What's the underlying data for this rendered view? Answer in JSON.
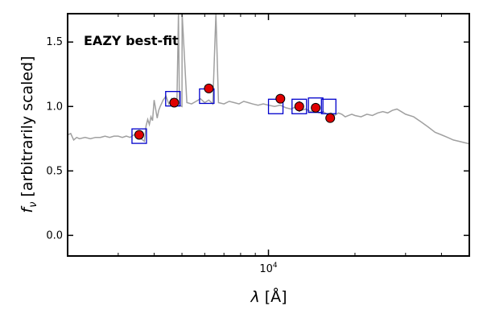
{
  "chart_data": {
    "type": "scatter",
    "xscale": "log",
    "xlim": [
      2000,
      50000
    ],
    "ylim": [
      -0.16,
      1.72
    ],
    "grid": false,
    "xticks": [
      {
        "value": 10000,
        "base": "10",
        "exp": "4"
      }
    ],
    "yticks": [
      {
        "value": 0.0,
        "label": "0.0"
      },
      {
        "value": 0.5,
        "label": "0.5"
      },
      {
        "value": 1.0,
        "label": "1.0"
      },
      {
        "value": 1.5,
        "label": "1.5"
      }
    ],
    "xlabel": {
      "symbol": "λ",
      "unit": "[Å]"
    },
    "ylabel": {
      "symbol": "f",
      "sub": "ν",
      "text": "[arbitrarily scaled]"
    },
    "annotation": {
      "text": "EAZY best-fit",
      "color": "#ff0000"
    },
    "colors": {
      "template": "#a0a0a0",
      "observed": "#e00000",
      "model": "#0000cc"
    },
    "template_spectrum": {
      "x": [
        2000,
        2050,
        2100,
        2150,
        2200,
        2300,
        2400,
        2500,
        2600,
        2700,
        2800,
        2900,
        3000,
        3100,
        3200,
        3300,
        3400,
        3500,
        3600,
        3650,
        3700,
        3750,
        3800,
        3850,
        3900,
        3950,
        4000,
        4050,
        4100,
        4150,
        4200,
        4300,
        4400,
        4500,
        4600,
        4700,
        4800,
        4861,
        4900,
        5000,
        5007,
        5200,
        5400,
        5600,
        5800,
        6000,
        6200,
        6400,
        6563,
        6700,
        7000,
        7300,
        7600,
        7900,
        8200,
        8500,
        8800,
        9200,
        9600,
        10000,
        10500,
        11000,
        11500,
        12000,
        12500,
        13000,
        13500,
        14000,
        14500,
        15000,
        15500,
        16000,
        16500,
        17000,
        17500,
        18000,
        18500,
        19000,
        19500,
        20000,
        21000,
        22000,
        23000,
        24000,
        25000,
        26000,
        27000,
        28000,
        29000,
        30000,
        32000,
        34000,
        36000,
        38000,
        40000,
        42000,
        44000,
        46000,
        48000,
        50000
      ],
      "y": [
        0.78,
        0.79,
        0.74,
        0.76,
        0.75,
        0.76,
        0.75,
        0.76,
        0.76,
        0.77,
        0.76,
        0.77,
        0.77,
        0.76,
        0.77,
        0.76,
        0.78,
        0.77,
        0.75,
        0.74,
        0.73,
        0.85,
        0.9,
        0.86,
        0.92,
        0.89,
        1.05,
        0.98,
        0.91,
        0.97,
        1.0,
        1.05,
        1.08,
        1.02,
        1.06,
        1.0,
        1.01,
        1.72,
        1.01,
        1.0,
        1.72,
        1.03,
        1.02,
        1.04,
        1.06,
        1.03,
        1.05,
        1.02,
        1.72,
        1.03,
        1.02,
        1.04,
        1.03,
        1.02,
        1.04,
        1.03,
        1.02,
        1.01,
        1.02,
        1.01,
        1.0,
        1.01,
        0.99,
        0.98,
        1.0,
        0.97,
        0.98,
        0.96,
        0.97,
        0.95,
        0.96,
        0.94,
        0.95,
        0.93,
        0.95,
        0.94,
        0.92,
        0.93,
        0.94,
        0.93,
        0.92,
        0.94,
        0.93,
        0.95,
        0.96,
        0.95,
        0.97,
        0.98,
        0.96,
        0.94,
        0.92,
        0.88,
        0.84,
        0.8,
        0.78,
        0.76,
        0.74,
        0.73,
        0.72,
        0.71
      ]
    },
    "observed": [
      {
        "x": 3550,
        "y": 0.78,
        "err": 0.02
      },
      {
        "x": 4700,
        "y": 1.03,
        "err": 0.02
      },
      {
        "x": 6200,
        "y": 1.14,
        "err": 0.02
      },
      {
        "x": 11000,
        "y": 1.06,
        "err": 0.03
      },
      {
        "x": 12800,
        "y": 1.0,
        "err": 0.04
      },
      {
        "x": 14600,
        "y": 0.99,
        "err": 0.03
      },
      {
        "x": 16400,
        "y": 0.91,
        "err": 0.02
      }
    ],
    "model": [
      {
        "x": 3550,
        "y": 0.77
      },
      {
        "x": 4650,
        "y": 1.06
      },
      {
        "x": 6100,
        "y": 1.08
      },
      {
        "x": 10600,
        "y": 1.0
      },
      {
        "x": 12800,
        "y": 1.0
      },
      {
        "x": 14600,
        "y": 1.01
      },
      {
        "x": 16200,
        "y": 1.0
      }
    ]
  }
}
